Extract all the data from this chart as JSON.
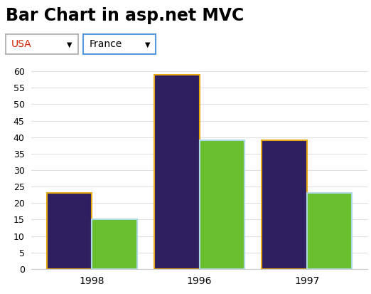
{
  "title": "Bar Chart in asp.net MVC",
  "title_fontsize": 17,
  "title_fontweight": "bold",
  "categories": [
    "1998",
    "1996",
    "1997"
  ],
  "usa_values": [
    23,
    59,
    39
  ],
  "france_values": [
    15,
    39,
    23
  ],
  "bar_color_usa": "#2e2060",
  "bar_color_france": "#6abf2e",
  "bar_edge_color_usa": "#e6a817",
  "bar_edge_color_france": "#add8e6",
  "ylim": [
    0,
    62
  ],
  "yticks": [
    0,
    5,
    10,
    15,
    20,
    25,
    30,
    35,
    40,
    45,
    50,
    55,
    60
  ],
  "bar_width": 0.42,
  "background_color": "#ffffff",
  "plot_bg_color": "#ffffff",
  "grid_color": "#e0e0e0",
  "dropdown1_label": "USA",
  "dropdown2_label": "France",
  "dropdown1_text_color": "#cc2200",
  "dropdown2_text_color": "#000000",
  "dropdown1_border_color": "#aaaaaa",
  "dropdown2_border_color": "#5599dd",
  "fig_width": 5.22,
  "fig_height": 4.13,
  "fig_dpi": 100
}
